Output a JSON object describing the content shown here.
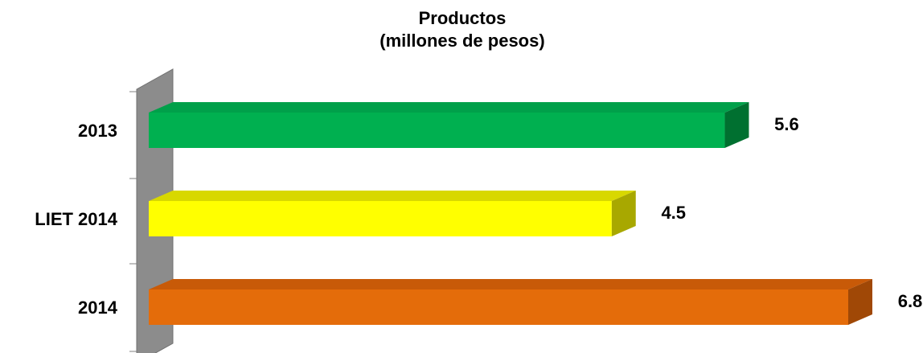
{
  "chart_data": {
    "type": "bar",
    "orientation": "horizontal",
    "title": "Productos",
    "subtitle": "(millones de pesos)",
    "categories": [
      "2013",
      "LIET 2014",
      "2014"
    ],
    "values": [
      5.6,
      4.5,
      6.8
    ],
    "value_labels": [
      "5.6",
      "4.5",
      "6.8"
    ],
    "colors": {
      "front": [
        "#00b050",
        "#ffff00",
        "#e46c0a"
      ],
      "top": [
        "#00a04a",
        "#d8d800",
        "#c85a08"
      ],
      "side": [
        "#007030",
        "#a8a800",
        "#a04806"
      ]
    },
    "wall_color": "#8c8c8c",
    "xlim": [
      0,
      6.8
    ],
    "grid": false,
    "legend": "none",
    "style": "3d"
  }
}
